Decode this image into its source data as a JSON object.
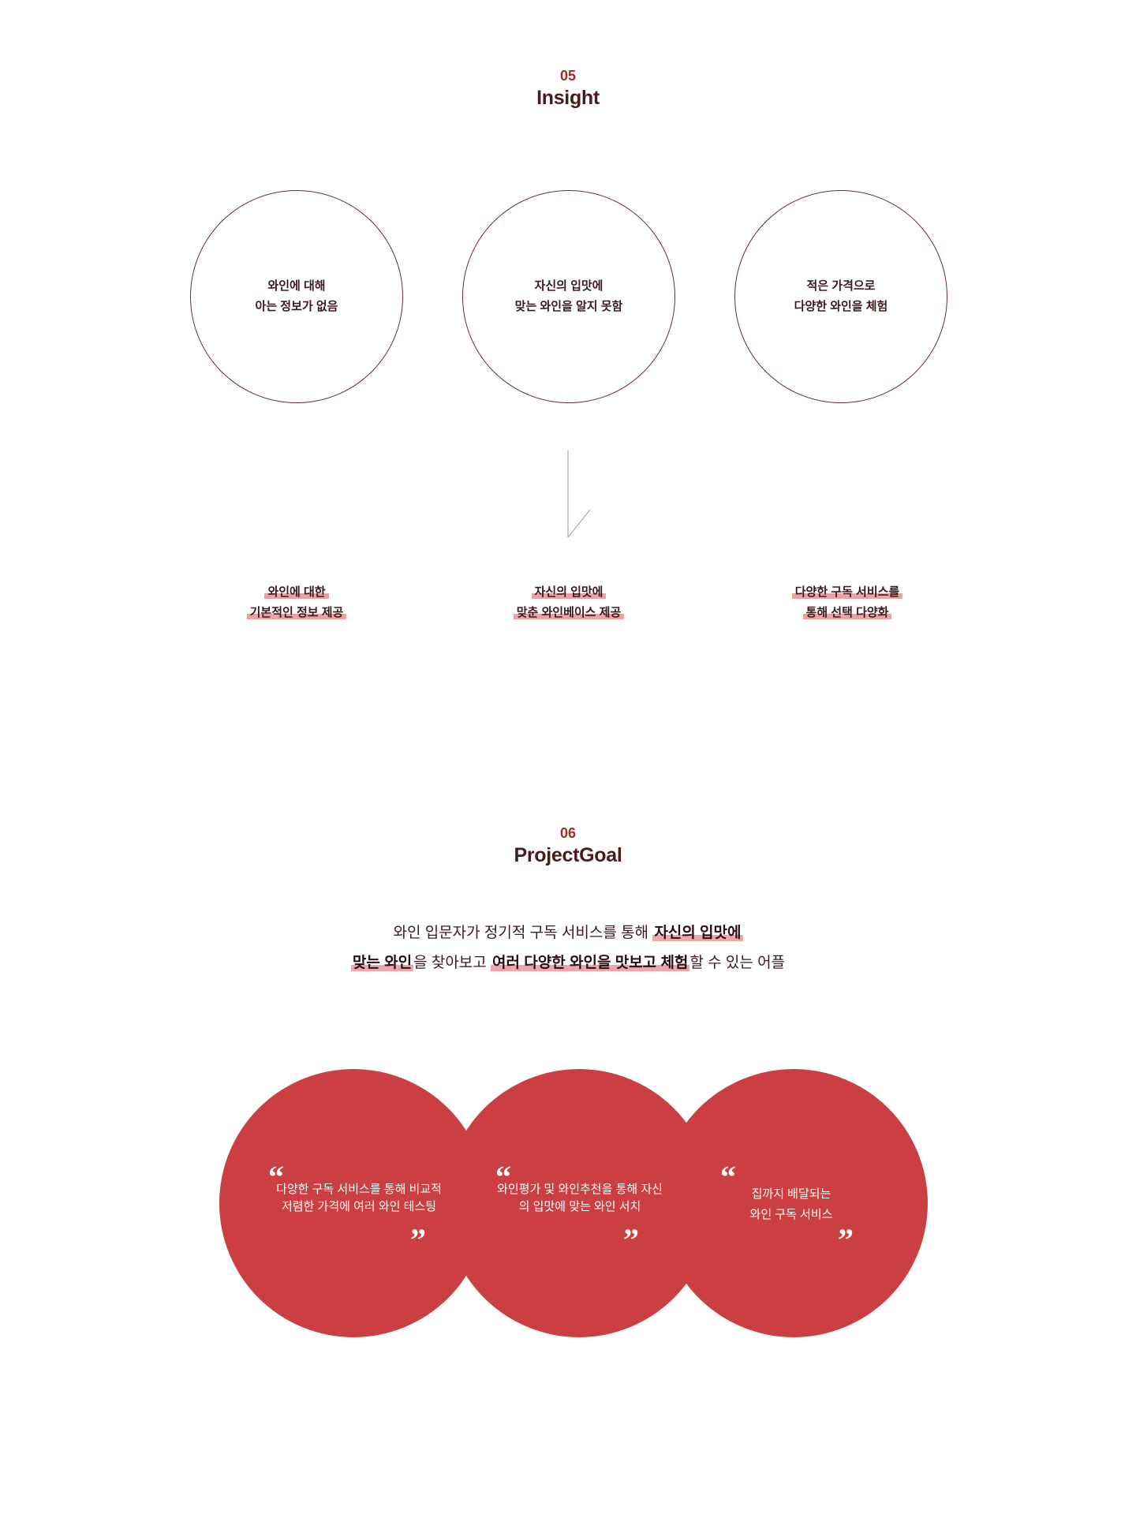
{
  "insight": {
    "number": "05",
    "title": "Insight",
    "circles": [
      {
        "line1": "와인에 대해",
        "line2": "아는 정보가 없음"
      },
      {
        "line1": "자신의 입맛에",
        "line2": "맞는 와인을 알지 못함"
      },
      {
        "line1": "적은 가격으로",
        "line2": "다양한 와인을 체험"
      }
    ],
    "solutions": [
      {
        "line1": "와인에 대한",
        "line2": "기본적인 정보 제공"
      },
      {
        "line1": "자신의 입맛에",
        "line2": "맞춘 와인베이스 제공"
      },
      {
        "line1": "다양한 구독 서비스를",
        "line2": "통해 선택 다양화"
      }
    ]
  },
  "project_goal": {
    "number": "06",
    "title": "ProjectGoal",
    "line1_plain": "와인 입문자가 정기적 구독 서비스를 통해 ",
    "line1_bold": "자신의 입맛에",
    "line2_bold1": "맞는 와인",
    "line2_plain1": "을 찾아보고 ",
    "line2_bold2": "여러 다양한 와인을 맛보고 체험",
    "line2_plain2": "할 수 있는 어플",
    "circles": [
      {
        "text": "다양한 구독 서비스를 통해 비교적 저렴한 가격에 여러 와인 테스팅"
      },
      {
        "text": "와인평가 및 와인추천을 통해 자신의 입맛에 맞는 와인 서치"
      },
      {
        "text": "집까지 배달되는\n와인 구독 서비스"
      }
    ],
    "open_quote": "“",
    "close_quote": "”"
  },
  "colors": {
    "accent": "#a3262b",
    "title": "#4a1a1e",
    "disc": "#cb3f42",
    "highlight": "#e9a2a4"
  }
}
